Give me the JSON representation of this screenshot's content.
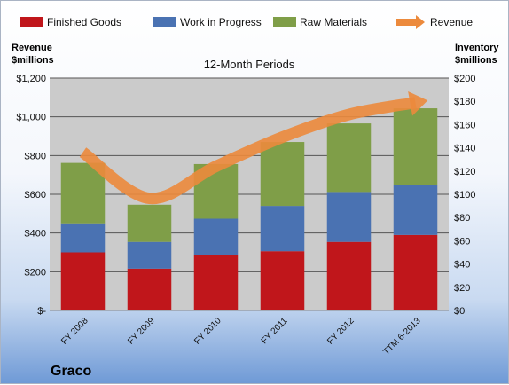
{
  "chart_data": {
    "type": "bar",
    "stacked": true,
    "title": "12-Month Periods",
    "company": "Graco",
    "categories": [
      "FY 2008",
      "FY 2009",
      "FY 2010",
      "FY 2011",
      "FY 2012",
      "TTM 6-2013"
    ],
    "left_axis": {
      "label_line1": "Revenue",
      "label_line2": "$millions",
      "ylim": [
        0,
        1200
      ],
      "ticks": [
        0,
        200,
        400,
        600,
        800,
        1000,
        1200
      ],
      "tick_labels": [
        "$-",
        "$200",
        "$400",
        "$600",
        "$800",
        "$1,000",
        "$1,200"
      ]
    },
    "right_axis": {
      "label_line1": "Inventory",
      "label_line2": "$millions",
      "ylim": [
        0,
        200
      ],
      "ticks": [
        0,
        20,
        40,
        60,
        80,
        100,
        120,
        140,
        160,
        180,
        200
      ],
      "tick_labels": [
        "$0",
        "$20",
        "$40",
        "$60",
        "$80",
        "$100",
        "$120",
        "$140",
        "$160",
        "$180",
        "$200"
      ]
    },
    "series": [
      {
        "name": "Finished Goods",
        "axis": "right",
        "color": "#c0161b",
        "values": [
          50,
          36,
          48,
          51,
          59,
          65
        ]
      },
      {
        "name": "Work in Progress",
        "axis": "right",
        "color": "#4a72b2",
        "values": [
          25,
          23,
          31,
          39,
          43,
          43
        ]
      },
      {
        "name": "Raw Materials",
        "axis": "right",
        "color": "#7f9e48",
        "values": [
          52,
          32,
          47,
          55,
          59,
          66
        ]
      },
      {
        "name": "Revenue",
        "axis": "left",
        "color": "#ec8a3c",
        "type": "line-arrow",
        "values": [
          817,
          579,
          744,
          895,
          1012,
          1073
        ]
      }
    ],
    "grid": true,
    "legend_position": "top"
  }
}
